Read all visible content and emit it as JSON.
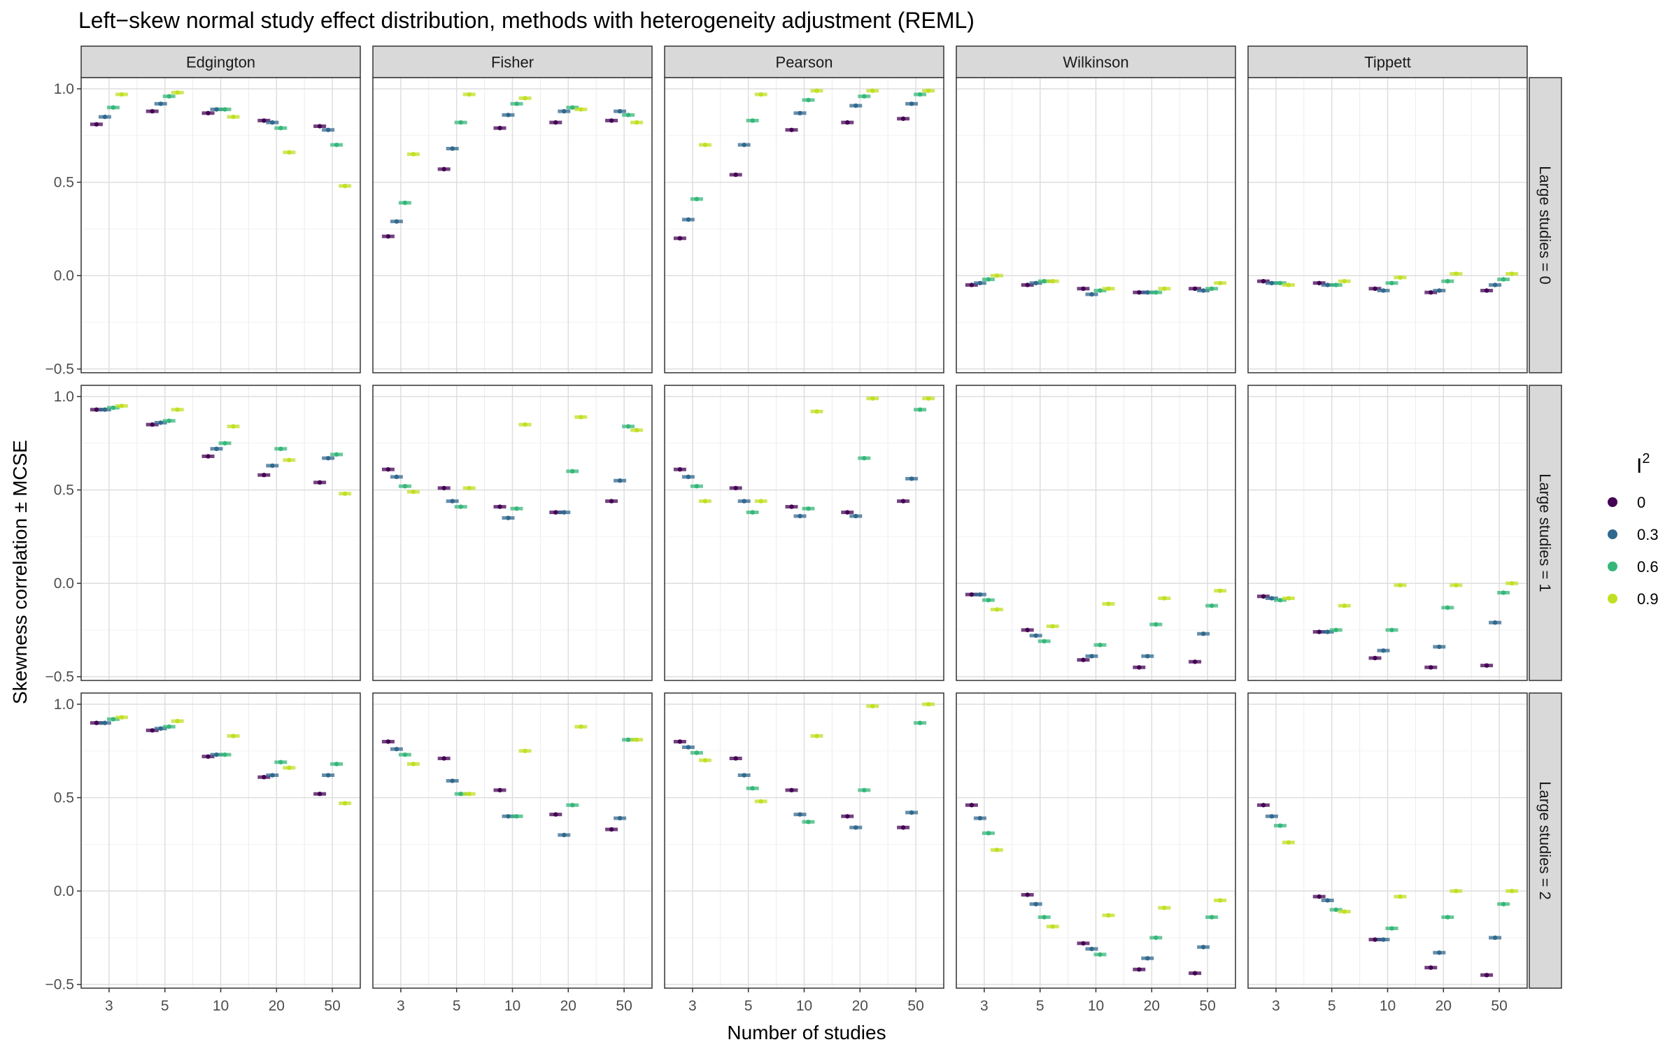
{
  "chart_data": {
    "type": "scatter",
    "title": "Left−skew normal study effect distribution, methods with heterogeneity adjustment (REML)",
    "xlabel": "Number of studies",
    "ylabel": "Skewness correlation ± MCSE",
    "x_categories": [
      "3",
      "5",
      "10",
      "20",
      "50"
    ],
    "ylim": [
      -0.52,
      1.06
    ],
    "y_ticks": [
      -0.5,
      0.0,
      0.5,
      1.0
    ],
    "y_tick_labels": [
      "−0.5",
      "0.0",
      "0.5",
      "1.0"
    ],
    "columns": [
      "Edgington",
      "Fisher",
      "Pearson",
      "Wilkinson",
      "Tippett"
    ],
    "rows": [
      "Large studies = 0",
      "Large studies = 1",
      "Large studies = 2"
    ],
    "legend": {
      "title": "I",
      "title_superscript": "2",
      "position": "right",
      "items": [
        {
          "label": "0",
          "color": "#440154"
        },
        {
          "label": "0.3",
          "color": "#31688E"
        },
        {
          "label": "0.6",
          "color": "#35B779"
        },
        {
          "label": "0.9",
          "color": "#C2DF23"
        }
      ]
    },
    "grid": true,
    "panels": [
      [
        [
          [
            0.81,
            0.85,
            0.9,
            0.97
          ],
          [
            0.88,
            0.92,
            0.96,
            0.98
          ],
          [
            0.87,
            0.89,
            0.89,
            0.85
          ],
          [
            0.83,
            0.82,
            0.79,
            0.66
          ],
          [
            0.8,
            0.78,
            0.7,
            0.48
          ]
        ],
        [
          [
            0.21,
            0.29,
            0.39,
            0.65
          ],
          [
            0.57,
            0.68,
            0.82,
            0.97
          ],
          [
            0.79,
            0.86,
            0.92,
            0.95
          ],
          [
            0.82,
            0.88,
            0.9,
            0.89
          ],
          [
            0.83,
            0.88,
            0.86,
            0.82
          ]
        ],
        [
          [
            0.2,
            0.3,
            0.41,
            0.7
          ],
          [
            0.54,
            0.7,
            0.83,
            0.97
          ],
          [
            0.78,
            0.87,
            0.94,
            0.99
          ],
          [
            0.82,
            0.91,
            0.96,
            0.99
          ],
          [
            0.84,
            0.92,
            0.97,
            0.99
          ]
        ],
        [
          [
            -0.05,
            -0.04,
            -0.02,
            0.0
          ],
          [
            -0.05,
            -0.04,
            -0.03,
            -0.03
          ],
          [
            -0.07,
            -0.1,
            -0.08,
            -0.07
          ],
          [
            -0.09,
            -0.09,
            -0.09,
            -0.07
          ],
          [
            -0.07,
            -0.08,
            -0.07,
            -0.04
          ]
        ],
        [
          [
            -0.03,
            -0.04,
            -0.04,
            -0.05
          ],
          [
            -0.04,
            -0.05,
            -0.05,
            -0.03
          ],
          [
            -0.07,
            -0.08,
            -0.04,
            -0.01
          ],
          [
            -0.09,
            -0.08,
            -0.03,
            0.01
          ],
          [
            -0.08,
            -0.05,
            -0.02,
            0.01
          ]
        ]
      ],
      [
        [
          [
            0.93,
            0.93,
            0.94,
            0.95
          ],
          [
            0.85,
            0.86,
            0.87,
            0.93
          ],
          [
            0.68,
            0.72,
            0.75,
            0.84
          ],
          [
            0.58,
            0.63,
            0.72,
            0.66
          ],
          [
            0.54,
            0.67,
            0.69,
            0.48
          ]
        ],
        [
          [
            0.61,
            0.57,
            0.52,
            0.49
          ],
          [
            0.51,
            0.44,
            0.41,
            0.51
          ],
          [
            0.41,
            0.35,
            0.4,
            0.85
          ],
          [
            0.38,
            0.38,
            0.6,
            0.89
          ],
          [
            0.44,
            0.55,
            0.84,
            0.82
          ]
        ],
        [
          [
            0.61,
            0.57,
            0.52,
            0.44
          ],
          [
            0.51,
            0.44,
            0.38,
            0.44
          ],
          [
            0.41,
            0.36,
            0.4,
            0.92
          ],
          [
            0.38,
            0.36,
            0.67,
            0.99
          ],
          [
            0.44,
            0.56,
            0.93,
            0.99
          ]
        ],
        [
          [
            -0.06,
            -0.06,
            -0.09,
            -0.14
          ],
          [
            -0.25,
            -0.28,
            -0.31,
            -0.23
          ],
          [
            -0.41,
            -0.39,
            -0.33,
            -0.11
          ],
          [
            -0.45,
            -0.39,
            -0.22,
            -0.08
          ],
          [
            -0.42,
            -0.27,
            -0.12,
            -0.04
          ]
        ],
        [
          [
            -0.07,
            -0.08,
            -0.09,
            -0.08
          ],
          [
            -0.26,
            -0.26,
            -0.25,
            -0.12
          ],
          [
            -0.4,
            -0.36,
            -0.25,
            -0.01
          ],
          [
            -0.45,
            -0.34,
            -0.13,
            -0.01
          ],
          [
            -0.44,
            -0.21,
            -0.05,
            0.0
          ]
        ]
      ],
      [
        [
          [
            0.9,
            0.9,
            0.92,
            0.93
          ],
          [
            0.86,
            0.87,
            0.88,
            0.91
          ],
          [
            0.72,
            0.73,
            0.73,
            0.83
          ],
          [
            0.61,
            0.62,
            0.69,
            0.66
          ],
          [
            0.52,
            0.62,
            0.68,
            0.47
          ]
        ],
        [
          [
            0.8,
            0.76,
            0.73,
            0.68
          ],
          [
            0.71,
            0.59,
            0.52,
            0.52
          ],
          [
            0.54,
            0.4,
            0.4,
            0.75
          ],
          [
            0.41,
            0.3,
            0.46,
            0.88
          ],
          [
            0.33,
            0.39,
            0.81,
            0.81
          ]
        ],
        [
          [
            0.8,
            0.77,
            0.74,
            0.7
          ],
          [
            0.71,
            0.62,
            0.55,
            0.48
          ],
          [
            0.54,
            0.41,
            0.37,
            0.83
          ],
          [
            0.4,
            0.34,
            0.54,
            0.99
          ],
          [
            0.34,
            0.42,
            0.9,
            1.0
          ]
        ],
        [
          [
            0.46,
            0.39,
            0.31,
            0.22
          ],
          [
            -0.02,
            -0.07,
            -0.14,
            -0.19
          ],
          [
            -0.28,
            -0.31,
            -0.34,
            -0.13
          ],
          [
            -0.42,
            -0.36,
            -0.25,
            -0.09
          ],
          [
            -0.44,
            -0.3,
            -0.14,
            -0.05
          ]
        ],
        [
          [
            0.46,
            0.4,
            0.35,
            0.26
          ],
          [
            -0.03,
            -0.05,
            -0.1,
            -0.11
          ],
          [
            -0.26,
            -0.26,
            -0.2,
            -0.03
          ],
          [
            -0.41,
            -0.33,
            -0.14,
            0.0
          ],
          [
            -0.45,
            -0.25,
            -0.07,
            0.0
          ]
        ]
      ]
    ]
  }
}
